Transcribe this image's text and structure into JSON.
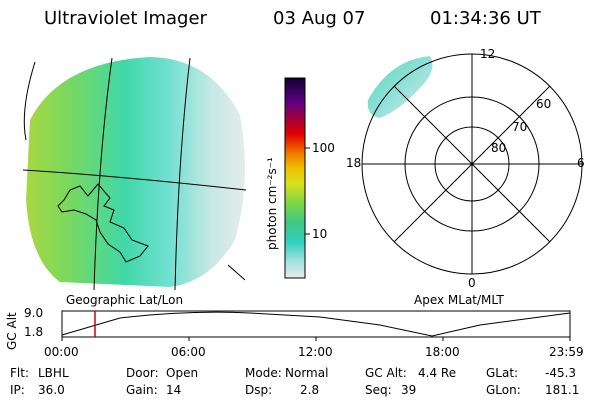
{
  "header": {
    "instrument": "Ultraviolet Imager",
    "date": "03 Aug 07",
    "time": "01:34:36 UT"
  },
  "colorbar": {
    "unit_label": "photon cm⁻²s⁻¹",
    "ticks": [
      "100",
      "10"
    ]
  },
  "left_map": {
    "caption": "Geographic Lat/Lon"
  },
  "right_map": {
    "caption": "Apex MLat/MLT",
    "mlt_labels": {
      "top": "12",
      "bottom": "0",
      "left": "18",
      "right": "6"
    },
    "lat_labels": [
      "60",
      "70",
      "80"
    ]
  },
  "altitude_plot": {
    "ylabel": "GC Alt",
    "y_ticks": [
      "9.0",
      "1.8"
    ],
    "x_ticks": [
      "00:00",
      "06:00",
      "12:00",
      "18:00",
      "23:59"
    ],
    "marker_color": "#cc0000"
  },
  "status": {
    "flt_label": "Flt:",
    "flt_value": "LBHL",
    "ip_label": "IP:",
    "ip_value": "36.0",
    "door_label": "Door:",
    "door_value": "Open",
    "gain_label": "Gain:",
    "gain_value": "14",
    "mode_label": "Mode:",
    "mode_value": "Normal",
    "dsp_label": "Dsp:",
    "dsp_value": "2.8",
    "gcalt_label": "GC Alt:",
    "gcalt_value": "4.4 Re",
    "seq_label": "Seq:",
    "seq_value": "39",
    "glat_label": "GLat:",
    "glat_value": "-45.3",
    "glon_label": "GLon:",
    "glon_value": "181.1"
  }
}
